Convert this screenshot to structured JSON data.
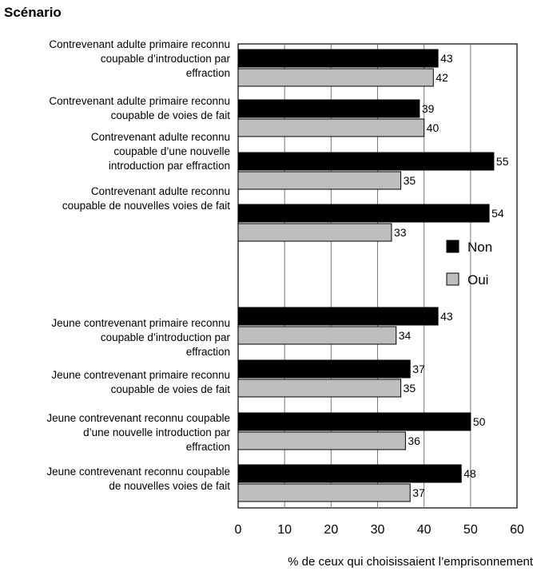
{
  "chart_data": {
    "type": "bar",
    "orientation": "horizontal",
    "title": "Scénario",
    "xlabel": "%  de ceux qui choisissaient l’emprisonnement",
    "ylabel": "",
    "xlim": [
      0,
      60
    ],
    "xticks": [
      0,
      10,
      20,
      30,
      40,
      50,
      60
    ],
    "grid": true,
    "legend_position": "right-middle",
    "categories": [
      [
        "Contrevenant adulte primaire reconnu",
        "coupable d’introduction par",
        "effraction"
      ],
      [
        "Contrevenant adulte primaire reconnu",
        "coupable de voies de fait"
      ],
      [
        "Contrevenant adulte reconnu",
        "coupable d’une nouvelle",
        "introduction par effraction"
      ],
      [
        "Contrevenant adulte reconnu",
        "coupable de nouvelles voies de fait"
      ],
      [
        "Jeune contrevenant primaire reconnu",
        "coupable d’introduction par",
        "effraction"
      ],
      [
        "Jeune contrevenant primaire reconnu",
        "coupable de voies de fait"
      ],
      [
        "Jeune contrevenant reconnu coupable",
        "d’une nouvelle introduction par",
        "effraction"
      ],
      [
        "Jeune contrevenant reconnu coupable",
        "de nouvelles voies de fait"
      ]
    ],
    "series": [
      {
        "name": "Non",
        "color": "#000000",
        "values": [
          43,
          39,
          55,
          54,
          43,
          37,
          50,
          48
        ]
      },
      {
        "name": "Oui",
        "color": "#bebebe",
        "values": [
          42,
          40,
          35,
          33,
          34,
          35,
          36,
          37
        ]
      }
    ]
  }
}
